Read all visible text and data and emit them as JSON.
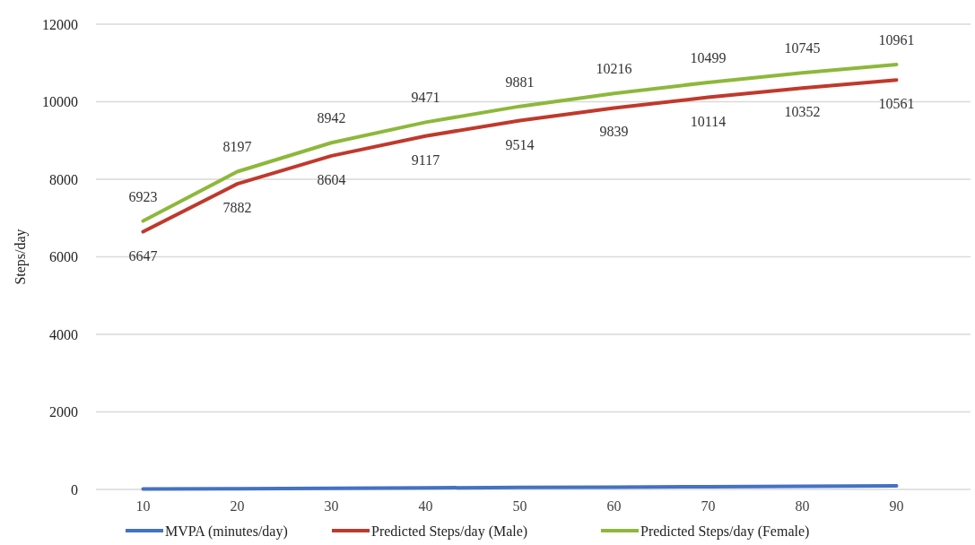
{
  "chart_data": {
    "type": "line",
    "ylabel": "Steps/day",
    "categories": [
      "10",
      "20",
      "30",
      "40",
      "50",
      "60",
      "70",
      "80",
      "90"
    ],
    "ylim": [
      0,
      12000
    ],
    "yticks": [
      0,
      2000,
      4000,
      6000,
      8000,
      10000,
      12000
    ],
    "grid": "y",
    "legend": "bottom",
    "marker": "none",
    "line_style": "solid",
    "series": [
      {
        "name": "MVPA (minutes/day)",
        "color": "#4472c4",
        "values": [
          10,
          20,
          30,
          40,
          50,
          60,
          70,
          80,
          90
        ]
      },
      {
        "name": "Predicted Steps/day (Male)",
        "color": "#c0392b",
        "values": [
          6647,
          7882,
          8604,
          9117,
          9514,
          9839,
          10114,
          10352,
          10561
        ],
        "value_labels": [
          "6647",
          "7882",
          "8604",
          "9117",
          "9514",
          "9839",
          "10114",
          "10352",
          "10561"
        ]
      },
      {
        "name": "Predicted Steps/day (Female)",
        "color": "#8db83b",
        "values": [
          6923,
          8197,
          8942,
          9471,
          9881,
          10216,
          10499,
          10745,
          10961
        ],
        "value_labels": [
          "6923",
          "8197",
          "8942",
          "9471",
          "9881",
          "10216",
          "10499",
          "10745",
          "10961"
        ]
      }
    ]
  }
}
